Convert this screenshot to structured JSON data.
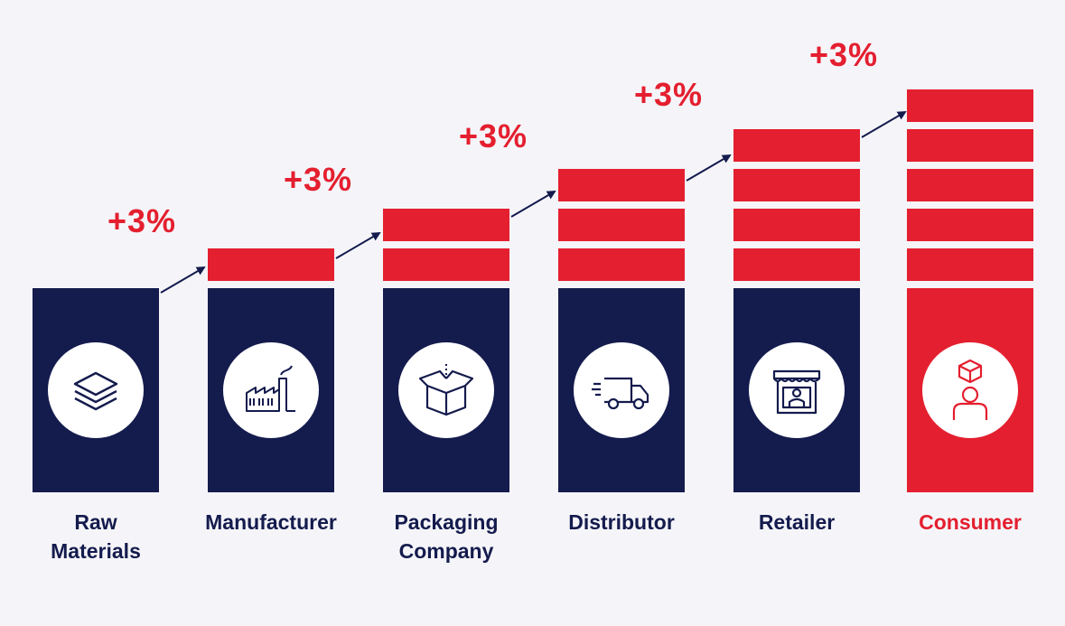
{
  "stages": [
    {
      "label": "Raw\nMaterials",
      "increment": "+3%",
      "icon": "layers-icon",
      "stack_blocks": 0
    },
    {
      "label": "Manufacturer",
      "increment": "+3%",
      "icon": "factory-icon",
      "stack_blocks": 1
    },
    {
      "label": "Packaging\nCompany",
      "increment": "+3%",
      "icon": "open-box-icon",
      "stack_blocks": 2
    },
    {
      "label": "Distributor",
      "increment": "+3%",
      "icon": "delivery-truck-icon",
      "stack_blocks": 3
    },
    {
      "label": "Retailer",
      "increment": "+3%",
      "icon": "storefront-icon",
      "stack_blocks": 4
    },
    {
      "label": "Consumer",
      "increment": "+3%",
      "icon": "consumer-icon",
      "stack_blocks": 5
    }
  ],
  "colors": {
    "navy": "#141b4d",
    "red": "#e41f2f",
    "background": "#f5f5f9",
    "white": "#ffffff"
  }
}
